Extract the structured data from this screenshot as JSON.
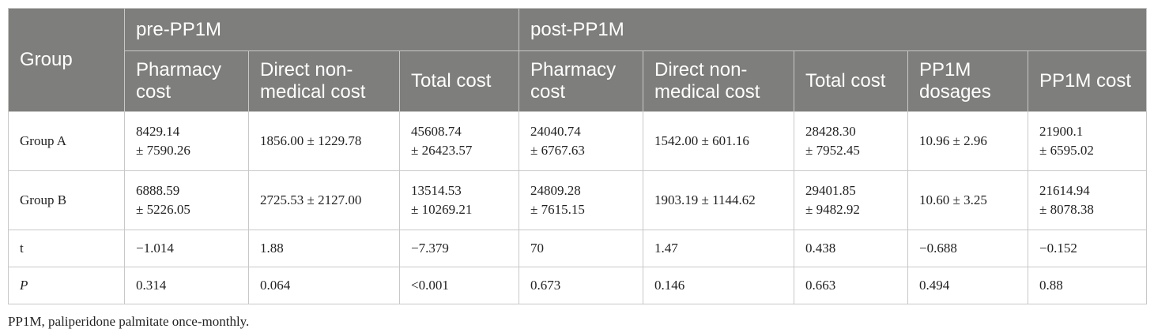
{
  "table": {
    "header": {
      "group_label": "Group",
      "pre_label": "pre-PP1M",
      "post_label": "post-PP1M",
      "columns": [
        "Pharmacy cost",
        "Direct non-medical cost",
        "Total cost",
        "Pharmacy cost",
        "Direct non-medical cost",
        "Total cost",
        "PP1M dosages",
        "PP1M cost"
      ]
    },
    "rows": [
      {
        "label": "Group A",
        "cells": [
          [
            "8429.14",
            "± 7590.26"
          ],
          [
            "1856.00 ± 1229.78"
          ],
          [
            "45608.74",
            "± 26423.57"
          ],
          [
            "24040.74",
            "± 6767.63"
          ],
          [
            "1542.00 ± 601.16"
          ],
          [
            "28428.30",
            "± 7952.45"
          ],
          [
            "10.96 ± 2.96"
          ],
          [
            "21900.1",
            "± 6595.02"
          ]
        ]
      },
      {
        "label": "Group B",
        "cells": [
          [
            "6888.59",
            "± 5226.05"
          ],
          [
            "2725.53 ± 2127.00"
          ],
          [
            "13514.53",
            "± 10269.21"
          ],
          [
            "24809.28",
            "± 7615.15"
          ],
          [
            "1903.19 ± 1144.62"
          ],
          [
            "29401.85",
            "± 9482.92"
          ],
          [
            "10.60 ± 3.25"
          ],
          [
            "21614.94",
            "± 8078.38"
          ]
        ]
      },
      {
        "label": "t",
        "cells": [
          [
            "−1.014"
          ],
          [
            "1.88"
          ],
          [
            "−7.379"
          ],
          [
            "70"
          ],
          [
            "1.47"
          ],
          [
            "0.438"
          ],
          [
            "−0.688"
          ],
          [
            "−0.152"
          ]
        ]
      },
      {
        "label": "P",
        "cells": [
          [
            "0.314"
          ],
          [
            "0.064"
          ],
          [
            "<0.001"
          ],
          [
            "0.673"
          ],
          [
            "0.146"
          ],
          [
            "0.663"
          ],
          [
            "0.494"
          ],
          [
            "0.88"
          ]
        ]
      }
    ]
  },
  "footnote": "PP1M, paliperidone palmitate once-monthly."
}
